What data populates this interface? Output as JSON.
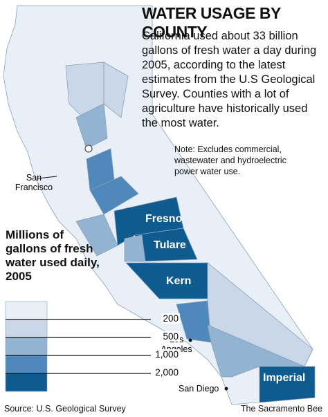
{
  "header": {
    "title": "WATER USAGE BY COUNTY",
    "description": "California used about 33 billion gallons of fresh water a day during 2005, according to the latest estimates from the U.S Geological Survey. Counties with a lot of agriculture have historically used the most water.",
    "note": "Note: Excludes commercial, wastewater and hydroelectric power water use."
  },
  "legend": {
    "title": "Millions of gallons of fresh water used daily, 2005",
    "thresholds": [
      "200",
      "500",
      "1,000",
      "2,000"
    ],
    "colors": [
      "#e9eff6",
      "#c9d7e8",
      "#93b3d3",
      "#4f88ba",
      "#0e5b8f"
    ]
  },
  "places": {
    "cities": [
      "San Francisco",
      "Los Angeles",
      "San Diego"
    ],
    "counties": [
      "Fresno",
      "Tulare",
      "Kern",
      "Imperial"
    ]
  },
  "footer": {
    "source": "Source: U.S. Geological Survey",
    "credit": "The Sacramento Bee"
  }
}
